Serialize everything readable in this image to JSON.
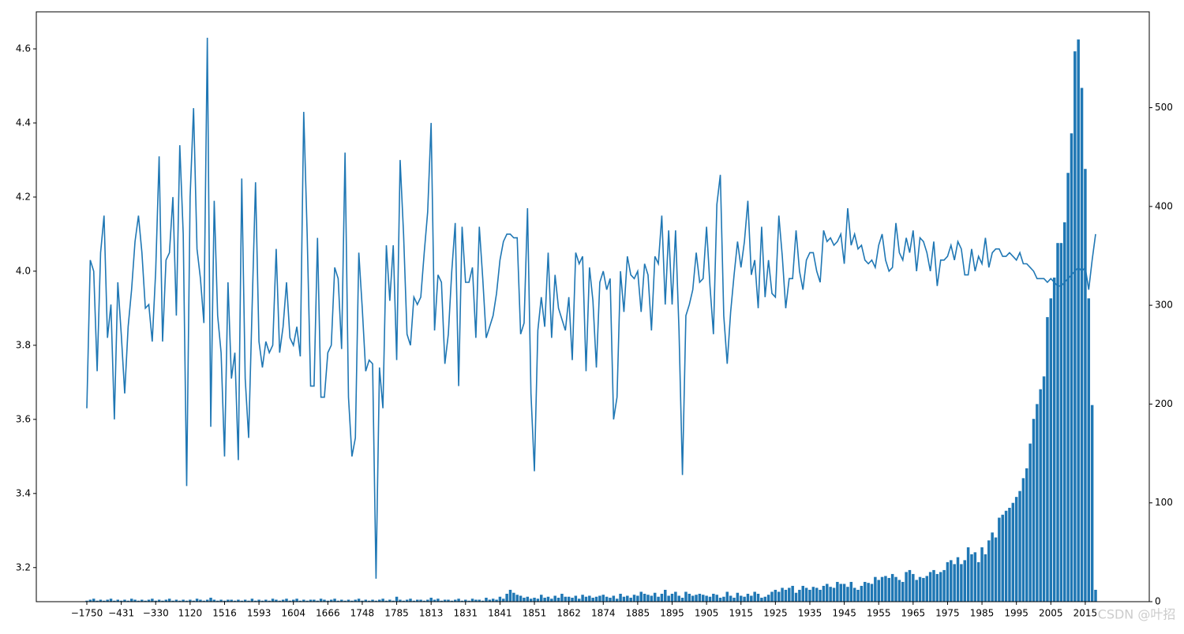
{
  "chart_data": {
    "type": "combo",
    "categories": [
      "−1750",
      null,
      null,
      null,
      null,
      null,
      null,
      null,
      null,
      null,
      "−431",
      null,
      null,
      null,
      null,
      null,
      null,
      null,
      null,
      null,
      "−330",
      null,
      null,
      null,
      null,
      null,
      null,
      null,
      null,
      null,
      "1120",
      null,
      null,
      null,
      null,
      null,
      null,
      null,
      null,
      null,
      "1516",
      null,
      null,
      null,
      null,
      null,
      null,
      null,
      null,
      null,
      "1593",
      null,
      null,
      null,
      null,
      null,
      null,
      null,
      null,
      null,
      "1604",
      null,
      null,
      null,
      null,
      null,
      null,
      null,
      null,
      null,
      "1666",
      null,
      null,
      null,
      null,
      null,
      null,
      null,
      null,
      null,
      "1748",
      null,
      null,
      null,
      null,
      null,
      null,
      null,
      null,
      null,
      "1785",
      null,
      null,
      null,
      null,
      null,
      null,
      null,
      null,
      null,
      "1813",
      null,
      null,
      null,
      null,
      null,
      null,
      null,
      null,
      null,
      "1831",
      null,
      null,
      null,
      null,
      null,
      null,
      null,
      null,
      null,
      "1841",
      null,
      null,
      null,
      null,
      null,
      null,
      null,
      null,
      null,
      "1851",
      null,
      null,
      null,
      null,
      null,
      null,
      null,
      null,
      null,
      "1862",
      null,
      null,
      null,
      null,
      null,
      null,
      null,
      null,
      null,
      "1874",
      null,
      null,
      null,
      null,
      null,
      null,
      null,
      null,
      null,
      "1885",
      null,
      null,
      null,
      null,
      null,
      null,
      null,
      null,
      null,
      "1895",
      null,
      null,
      null,
      null,
      null,
      null,
      null,
      null,
      null,
      "1905",
      null,
      null,
      null,
      null,
      null,
      null,
      null,
      null,
      null,
      "1915",
      null,
      null,
      null,
      null,
      null,
      null,
      null,
      null,
      null,
      "1925",
      null,
      null,
      null,
      null,
      null,
      null,
      null,
      null,
      null,
      "1935",
      null,
      null,
      null,
      null,
      null,
      null,
      null,
      null,
      null,
      "1945",
      null,
      null,
      null,
      null,
      null,
      null,
      null,
      null,
      null,
      "1955",
      null,
      null,
      null,
      null,
      null,
      null,
      null,
      null,
      null,
      "1965",
      null,
      null,
      null,
      null,
      null,
      null,
      null,
      null,
      null,
      "1975",
      null,
      null,
      null,
      null,
      null,
      null,
      null,
      null,
      null,
      "1985",
      null,
      null,
      null,
      null,
      null,
      null,
      null,
      null,
      null,
      "1995",
      null,
      null,
      null,
      null,
      null,
      null,
      null,
      null,
      null,
      "2005",
      null,
      null,
      null,
      null,
      null,
      null,
      null,
      null,
      null,
      "2015",
      null,
      null,
      null
    ],
    "series": [
      {
        "type": "line",
        "axis": "y",
        "color": "#1f77b4",
        "values": [
          3.63,
          4.03,
          4.0,
          3.73,
          4.05,
          4.15,
          3.82,
          3.91,
          3.6,
          3.97,
          3.83,
          3.67,
          3.85,
          3.95,
          4.08,
          4.15,
          4.05,
          3.9,
          3.91,
          3.81,
          4.0,
          4.31,
          3.81,
          4.03,
          4.05,
          4.2,
          3.88,
          4.34,
          4.1,
          3.42,
          4.2,
          4.44,
          4.06,
          3.98,
          3.86,
          4.63,
          3.58,
          4.19,
          3.88,
          3.78,
          3.5,
          3.97,
          3.71,
          3.78,
          3.49,
          4.25,
          3.71,
          3.55,
          3.9,
          4.24,
          3.81,
          3.74,
          3.81,
          3.78,
          3.8,
          4.06,
          3.78,
          3.85,
          3.97,
          3.82,
          3.8,
          3.85,
          3.77,
          4.43,
          4.1,
          3.69,
          3.69,
          4.09,
          3.66,
          3.66,
          3.78,
          3.8,
          4.01,
          3.98,
          3.79,
          4.32,
          3.66,
          3.5,
          3.55,
          4.05,
          3.9,
          3.73,
          3.76,
          3.75,
          3.17,
          3.74,
          3.63,
          4.07,
          3.92,
          4.07,
          3.76,
          4.3,
          4.1,
          3.83,
          3.8,
          3.93,
          3.91,
          3.93,
          4.05,
          4.16,
          4.4,
          3.84,
          3.99,
          3.97,
          3.75,
          3.83,
          4.0,
          4.13,
          3.69,
          4.12,
          3.97,
          3.97,
          4.01,
          3.82,
          4.12,
          3.98,
          3.82,
          3.85,
          3.88,
          3.94,
          4.03,
          4.08,
          4.1,
          4.1,
          4.09,
          4.09,
          3.83,
          3.86,
          4.17,
          3.67,
          3.46,
          3.84,
          3.93,
          3.85,
          4.05,
          3.82,
          3.99,
          3.9,
          3.87,
          3.84,
          3.93,
          3.76,
          4.05,
          4.02,
          4.04,
          3.73,
          4.01,
          3.92,
          3.74,
          3.97,
          4.0,
          3.95,
          3.98,
          3.6,
          3.66,
          4.0,
          3.89,
          4.04,
          3.99,
          3.98,
          4.0,
          3.89,
          4.02,
          3.99,
          3.84,
          4.04,
          4.02,
          4.15,
          3.91,
          4.11,
          3.91,
          4.11,
          3.84,
          3.45,
          3.88,
          3.91,
          3.95,
          4.05,
          3.97,
          3.98,
          4.12,
          3.96,
          3.83,
          4.18,
          4.26,
          3.88,
          3.75,
          3.89,
          3.99,
          4.08,
          4.01,
          4.08,
          4.19,
          3.99,
          4.03,
          3.9,
          4.12,
          3.93,
          4.03,
          3.94,
          3.93,
          4.15,
          4.04,
          3.9,
          3.98,
          3.98,
          4.11,
          4.0,
          3.95,
          4.03,
          4.05,
          4.05,
          4.0,
          3.97,
          4.11,
          4.08,
          4.09,
          4.07,
          4.08,
          4.1,
          4.02,
          4.17,
          4.07,
          4.1,
          4.06,
          4.07,
          4.03,
          4.02,
          4.03,
          4.01,
          4.07,
          4.1,
          4.03,
          4.0,
          4.01,
          4.13,
          4.05,
          4.03,
          4.09,
          4.05,
          4.11,
          4.0,
          4.09,
          4.08,
          4.05,
          4.0,
          4.08,
          3.96,
          4.03,
          4.03,
          4.04,
          4.07,
          4.03,
          4.08,
          4.06,
          3.99,
          3.99,
          4.06,
          4.0,
          4.04,
          4.02,
          4.09,
          4.01,
          4.05,
          4.06,
          4.06,
          4.04,
          4.04,
          4.05,
          4.04,
          4.03,
          4.05,
          4.02,
          4.02,
          4.01,
          4.0,
          3.98,
          3.98,
          3.98,
          3.97,
          3.98,
          3.97,
          3.96,
          3.96,
          3.97,
          3.98,
          3.99,
          4.0,
          4.01,
          4.0,
          4.01,
          3.95,
          4.03,
          4.1
        ]
      },
      {
        "type": "bar",
        "axis": "y2",
        "color": "#1f77b4",
        "values": [
          1,
          2,
          3,
          1,
          2,
          1,
          2,
          3,
          1,
          2,
          1,
          2,
          1,
          3,
          2,
          1,
          2,
          1,
          2,
          3,
          1,
          2,
          1,
          2,
          3,
          1,
          2,
          1,
          2,
          1,
          2,
          1,
          3,
          2,
          1,
          2,
          4,
          2,
          1,
          2,
          1,
          2,
          2,
          1,
          2,
          1,
          2,
          1,
          3,
          1,
          2,
          1,
          2,
          1,
          3,
          2,
          1,
          2,
          3,
          1,
          2,
          3,
          1,
          2,
          1,
          2,
          2,
          1,
          3,
          2,
          1,
          2,
          3,
          1,
          2,
          1,
          2,
          1,
          2,
          3,
          1,
          2,
          1,
          2,
          1,
          2,
          3,
          1,
          2,
          1,
          5,
          2,
          1,
          2,
          3,
          1,
          2,
          2,
          1,
          2,
          4,
          2,
          3,
          1,
          2,
          2,
          1,
          2,
          3,
          1,
          2,
          1,
          3,
          2,
          2,
          1,
          4,
          2,
          3,
          2,
          5,
          3,
          8,
          12,
          9,
          7,
          6,
          4,
          5,
          3,
          4,
          3,
          7,
          4,
          5,
          3,
          6,
          4,
          8,
          5,
          5,
          4,
          6,
          3,
          7,
          5,
          6,
          4,
          5,
          6,
          7,
          5,
          4,
          6,
          3,
          8,
          5,
          6,
          4,
          7,
          6,
          10,
          8,
          7,
          6,
          9,
          5,
          8,
          12,
          6,
          8,
          10,
          6,
          4,
          10,
          8,
          6,
          7,
          8,
          7,
          6,
          5,
          8,
          7,
          4,
          5,
          10,
          6,
          4,
          9,
          6,
          5,
          8,
          6,
          10,
          8,
          4,
          5,
          7,
          10,
          12,
          10,
          14,
          12,
          14,
          16,
          9,
          12,
          16,
          14,
          12,
          15,
          14,
          12,
          16,
          18,
          15,
          14,
          20,
          18,
          18,
          15,
          20,
          14,
          12,
          16,
          20,
          19,
          18,
          25,
          22,
          25,
          26,
          24,
          28,
          25,
          22,
          20,
          30,
          32,
          28,
          22,
          25,
          24,
          26,
          30,
          32,
          28,
          30,
          32,
          40,
          42,
          38,
          45,
          38,
          42,
          55,
          48,
          50,
          40,
          55,
          48,
          62,
          70,
          65,
          85,
          88,
          92,
          95,
          100,
          106,
          112,
          125,
          135,
          160,
          185,
          200,
          215,
          228,
          288,
          307,
          328,
          363,
          363,
          384,
          434,
          474,
          557,
          569,
          520,
          438,
          307,
          199,
          12
        ]
      }
    ],
    "ylim": [
      3.108,
      4.7
    ],
    "yticks": [
      3.2,
      3.4,
      3.6,
      3.8,
      {
        "value": 4,
        "label": "4.0"
      },
      4.2,
      4.4,
      4.6
    ],
    "y2lim": [
      0,
      597
    ],
    "y2ticks": [
      0,
      100,
      200,
      300,
      400,
      500
    ],
    "watermark": "CSDN @叶招"
  }
}
